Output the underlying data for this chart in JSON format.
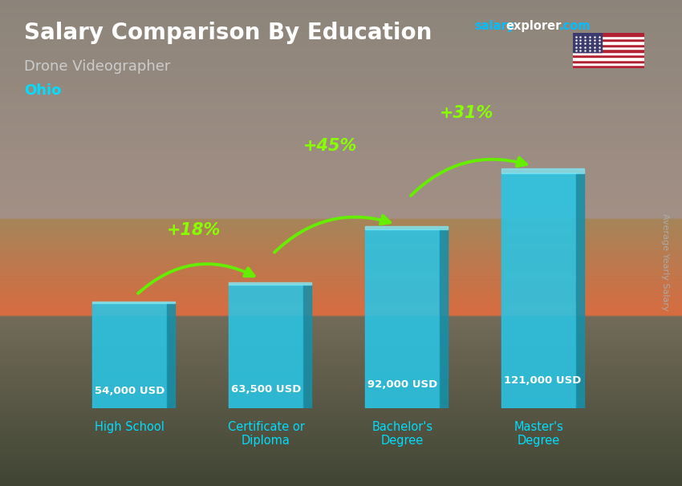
{
  "title": "Salary Comparison By Education",
  "subtitle": "Drone Videographer",
  "location": "Ohio",
  "ylabel": "Average Yearly Salary",
  "categories": [
    "High School",
    "Certificate or\nDiploma",
    "Bachelor's\nDegree",
    "Master's\nDegree"
  ],
  "values": [
    54000,
    63500,
    92000,
    121000
  ],
  "value_labels": [
    "54,000 USD",
    "63,500 USD",
    "92,000 USD",
    "121,000 USD"
  ],
  "pct_changes": [
    "+18%",
    "+45%",
    "+31%"
  ],
  "bar_color": "#29C5E6",
  "bar_color_dark": "#1590AA",
  "bar_top_color": "#7EEAF8",
  "bar_width": 0.55,
  "bg_top_color": "#7a8070",
  "bg_bottom_color": "#8a7060",
  "title_color": "#FFFFFF",
  "subtitle_color": "#CCCCCC",
  "location_color": "#00DDFF",
  "salary_label_color": "#FFFFFF",
  "pct_color": "#88FF00",
  "arrow_color": "#66EE00",
  "ylabel_color": "#AAAAAA",
  "brand_salary_color": "#00BFFF",
  "brand_explorer_color": "#FFFFFF",
  "brand_com_color": "#00BFFF",
  "ylim_max": 150000,
  "tick_label_color": "#00DDFF"
}
